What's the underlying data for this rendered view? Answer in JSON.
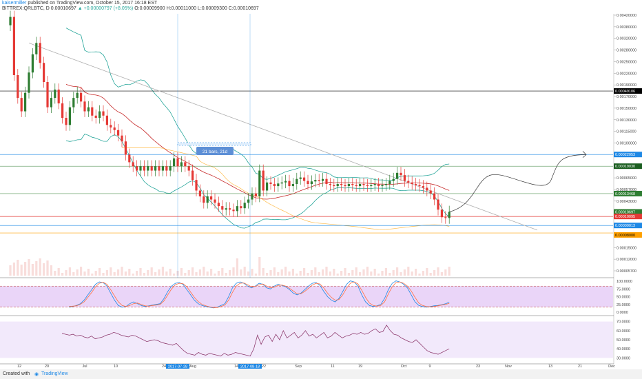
{
  "header": {
    "author": "kaisermiller",
    "published": " published on TradingView.com, October 15, 2017 16:18 EST",
    "symbol": "BITTREX:QRLBTC, D",
    "last": "0.00010697",
    "change": "+0.00000797 (+8.05%)",
    "ohlc": "O:0.00009900 H:0.00011000 L:0.00009300 C:0.00010697"
  },
  "footer": {
    "created": "Created with",
    "brand": "TradingView"
  },
  "chart_data": {
    "type": "candlestick",
    "price_axis_labels": [
      "0.00420000",
      "0.00380000",
      "0.00320000",
      "0.00280000",
      "0.00250000",
      "0.00220000",
      "0.00190000",
      "0.00170000",
      "0.00150000",
      "0.00130000",
      "0.00115000",
      "0.00100000",
      "0.00085000",
      "0.00075000",
      "0.00065000",
      "0.00057000",
      "0.00043000",
      "0.00037000",
      "0.00031000",
      "0.00026000",
      "0.00015000",
      "0.00012000",
      "0.00005700"
    ],
    "price_tags": [
      {
        "label": "0.00049106",
        "color": "#000000"
      },
      {
        "label": "0.00022053",
        "color": "#1e88e5"
      },
      {
        "label": "0.00019030",
        "color": "#1b5e20"
      },
      {
        "label": "0.00013468",
        "color": "#2e7d32"
      },
      {
        "label": "0.00010697",
        "color": "#2e7d32"
      },
      {
        "label": "0.00010095",
        "color": "#e53935"
      },
      {
        "label": "0.00009013",
        "color": "#1e88e5"
      },
      {
        "label": "0.00008000",
        "color": "#ffa000"
      }
    ],
    "time_axis_labels": [
      "12",
      "20",
      "Jul",
      "10",
      "24",
      "Aug",
      "14",
      "22",
      "Sep",
      "11",
      "19",
      "Oct",
      "9",
      "23",
      "Nov",
      "13",
      "21",
      "Dec"
    ],
    "time_tags": [
      "2017-07-28",
      "2017-08-18"
    ],
    "measure_label": "21 bars, 21d",
    "stoch_axis_labels": [
      "100.0000",
      "75.0000",
      "50.0000",
      "25.0000",
      "0.0000"
    ],
    "rsi_axis_labels": [
      "70.0000",
      "60.0000",
      "50.0000",
      "40.0000",
      "30.0000"
    ],
    "close": [
      0.00125,
      0.0006,
      0.00045,
      0.00038,
      0.00048,
      0.00062,
      0.00078,
      0.0009,
      0.0007,
      0.00055,
      0.0004,
      0.00045,
      0.0005,
      0.00042,
      0.00035,
      0.00032,
      0.0004,
      0.00045,
      0.00048,
      0.00043,
      0.00038,
      0.0004,
      0.00036,
      0.00035,
      0.00038,
      0.00036,
      0.00032,
      0.00031,
      0.0003,
      0.00028,
      0.00026,
      0.00022,
      0.0002,
      0.00019,
      0.00018,
      0.00019,
      0.00018,
      0.00019,
      0.00018,
      0.00019,
      0.00018,
      0.00019,
      0.00018,
      0.00019,
      0.00021,
      0.00019,
      0.0002,
      0.00019,
      0.00018,
      0.00016,
      0.00014,
      0.00013,
      0.00012,
      0.00013,
      0.000125,
      0.00012,
      0.000115,
      0.00011,
      0.000112,
      0.00011,
      0.000108,
      0.000115,
      0.000112,
      0.00012,
      0.000125,
      0.000135,
      0.00013,
      0.00018,
      0.00014,
      0.000155,
      0.000152,
      0.000148,
      0.000153,
      0.000155,
      0.000158,
      0.000148,
      0.000152,
      0.000162,
      0.000165,
      0.000158,
      0.000152,
      0.000157,
      0.00016,
      0.000158,
      0.000162,
      0.000152,
      0.00015,
      0.000148,
      0.000152,
      0.00015,
      0.000148,
      0.000152,
      0.00015,
      0.000148,
      0.000152,
      0.00015,
      0.000148,
      0.00015,
      0.000152,
      0.000148,
      0.00015,
      0.000152,
      0.000158,
      0.000162,
      0.000175,
      0.00017,
      0.000158,
      0.000155,
      0.000152,
      0.00015,
      0.000148,
      0.000145,
      0.00014,
      0.000135,
      0.000125,
      0.00011,
      0.0001,
      9.9e-05,
      0.00010697
    ],
    "stoch_k": [
      20,
      22,
      25,
      30,
      40,
      55,
      70,
      85,
      92,
      90,
      80,
      60,
      40,
      25,
      20,
      22,
      30,
      35,
      30,
      25,
      22,
      24,
      26,
      28,
      30,
      45,
      65,
      80,
      88,
      90,
      85,
      70,
      55,
      40,
      30,
      25,
      22,
      20,
      18,
      20,
      25,
      30,
      50,
      75,
      88,
      92,
      88,
      80,
      75,
      80,
      88,
      85,
      75,
      72,
      80,
      85,
      82,
      78,
      70,
      60,
      55,
      60,
      70,
      80,
      88,
      90,
      82,
      65,
      50,
      40,
      35,
      45,
      65,
      85,
      95,
      92,
      80,
      55,
      35,
      25,
      22,
      24,
      28,
      45,
      70,
      88,
      95,
      92,
      85,
      75,
      55,
      35,
      25,
      22,
      20,
      22,
      24,
      25,
      27,
      30,
      34
    ],
    "stoch_d": [
      22,
      23,
      24,
      28,
      35,
      48,
      62,
      78,
      88,
      91,
      85,
      70,
      52,
      35,
      25,
      22,
      25,
      30,
      32,
      28,
      24,
      23,
      25,
      26,
      28,
      38,
      55,
      72,
      84,
      88,
      87,
      78,
      63,
      48,
      36,
      28,
      24,
      21,
      19,
      19,
      22,
      26,
      40,
      62,
      80,
      88,
      89,
      84,
      78,
      79,
      84,
      86,
      80,
      75,
      77,
      82,
      83,
      80,
      74,
      66,
      58,
      58,
      65,
      74,
      83,
      88,
      86,
      75,
      60,
      48,
      40,
      42,
      55,
      74,
      88,
      92,
      86,
      68,
      48,
      32,
      25,
      23,
      25,
      35,
      58,
      78,
      90,
      92,
      88,
      80,
      66,
      48,
      32,
      25,
      22,
      21,
      22,
      24,
      26,
      28,
      31
    ],
    "rsi": [
      57,
      56,
      55,
      56,
      54,
      55,
      53,
      52,
      54,
      51,
      52,
      53,
      55,
      56,
      58,
      57,
      55,
      54,
      53,
      55,
      54,
      52,
      50,
      48,
      49,
      50,
      49,
      47,
      46,
      45,
      44,
      46,
      42,
      38,
      35,
      34,
      33,
      36,
      34,
      33,
      35,
      34,
      33,
      32,
      35,
      33,
      34,
      36,
      35,
      34,
      33,
      32,
      40,
      55,
      45,
      53,
      55,
      48,
      56,
      50,
      60,
      52,
      55,
      58,
      52,
      55,
      60,
      54,
      56,
      52,
      55,
      58,
      52,
      54,
      58,
      55,
      52,
      54,
      55,
      57,
      56,
      58,
      56,
      57,
      60,
      62,
      58,
      59,
      66,
      60,
      56,
      55,
      52,
      50,
      48,
      47,
      50,
      46,
      42,
      38,
      36,
      35,
      34,
      36,
      38,
      40
    ]
  }
}
